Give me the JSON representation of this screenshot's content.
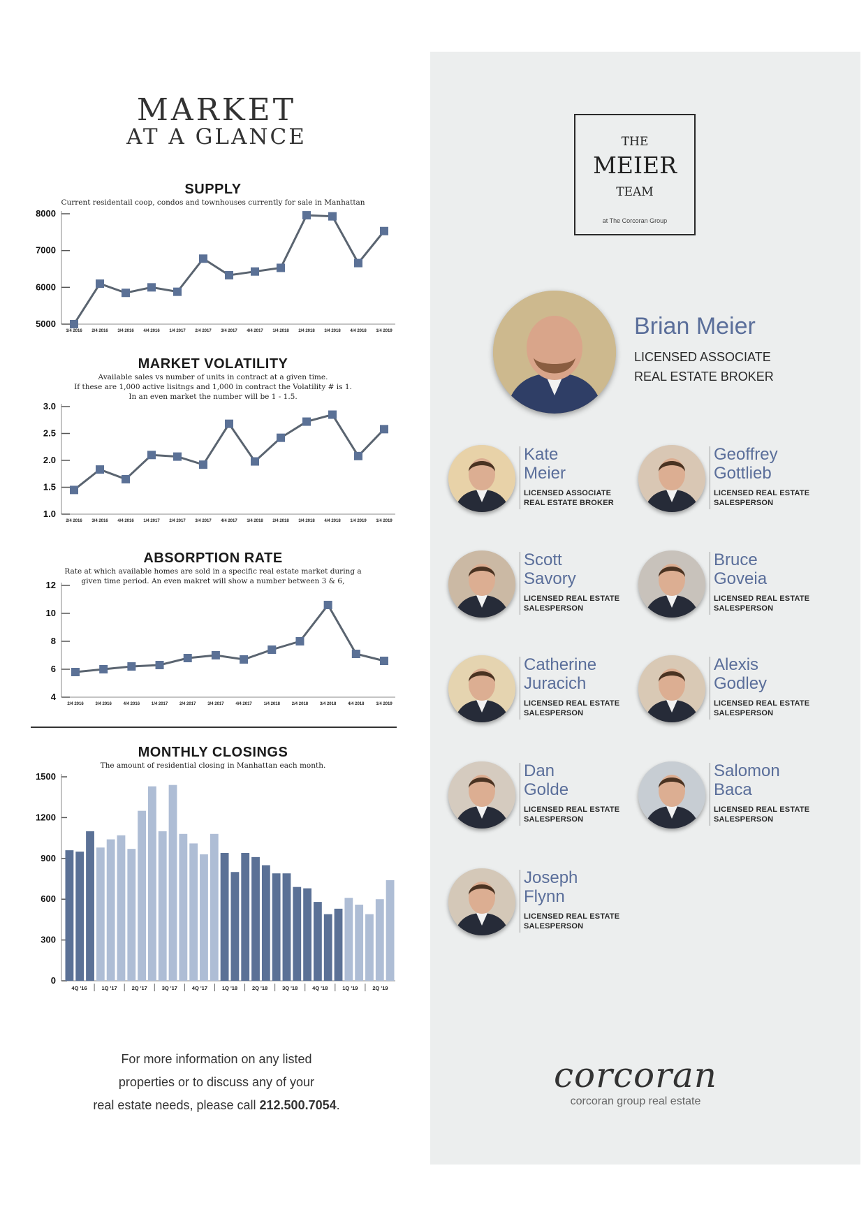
{
  "header": {
    "title_line1": "MARKET",
    "title_line2": "AT A GLANCE"
  },
  "colors": {
    "line": "#5a6470",
    "marker": "#5b7196",
    "bar_dark": "#5b7196",
    "bar_light": "#aebdd5",
    "accent": "#5a6e9a",
    "panel_bg": "#eceeee"
  },
  "chart_data": [
    {
      "id": "supply",
      "type": "line",
      "title": "SUPPLY",
      "subtitle": [
        "Current residentail coop, condos and townhouses currently for sale in Manhattan"
      ],
      "categories": [
        "1/4 2016",
        "2/4 2016",
        "3/4 2016",
        "4/4 2016",
        "1/4 2017",
        "2/4 2017",
        "3/4 2017",
        "4/4 2017",
        "1/4 2018",
        "2/4 2018",
        "3/4 2018",
        "4/4 2018",
        "1/4 2019"
      ],
      "values": [
        5000,
        6100,
        5850,
        6000,
        5880,
        6780,
        6330,
        6430,
        6530,
        7960,
        7930,
        6660,
        7530
      ],
      "yticks": [
        "5000",
        "6000",
        "7000",
        "8000"
      ],
      "ylim": [
        5000,
        8000
      ]
    },
    {
      "id": "volatility",
      "type": "line",
      "title": "MARKET VOLATILITY",
      "subtitle": [
        "Available sales vs number of units in contract at a given time.",
        "If these are 1,000 active lisitngs and 1,000 in contract the Volatility # is 1.",
        "In an even market the number will be 1 - 1.5."
      ],
      "categories": [
        "2/4 2016",
        "3/4 2016",
        "4/4 2016",
        "1/4 2017",
        "2/4 2017",
        "3/4 2017",
        "4/4 2017",
        "1/4 2018",
        "2/4 2018",
        "3/4 2018",
        "4/4 2018",
        "1/4 2019",
        "1/4 2019"
      ],
      "values": [
        1.45,
        1.83,
        1.65,
        2.1,
        2.07,
        1.92,
        2.68,
        1.98,
        2.42,
        2.72,
        2.85,
        2.08,
        2.58
      ],
      "yticks": [
        "1.0",
        "1.5",
        "2.0",
        "2.5",
        "3.0"
      ],
      "ylim": [
        1.0,
        3.0
      ]
    },
    {
      "id": "absorption",
      "type": "line",
      "title": "ABSORPTION RATE",
      "subtitle": [
        "Rate at which available homes are sold in a specific real estate market during a",
        "given time period. An even makret will show a number between 3 & 6,"
      ],
      "categories": [
        "2/4 2016",
        "3/4 2016",
        "4/4 2016",
        "1/4 2017",
        "2/4 2017",
        "3/4 2017",
        "4/4 2017",
        "1/4 2018",
        "2/4 2018",
        "3/4 2018",
        "4/4 2018",
        "1/4 2019"
      ],
      "values": [
        5.8,
        6.0,
        6.2,
        6.3,
        6.8,
        7.0,
        6.7,
        7.4,
        8.0,
        10.6,
        7.1,
        6.6
      ],
      "yticks": [
        "4",
        "6",
        "8",
        "10",
        "12"
      ],
      "ylim": [
        4,
        12
      ]
    },
    {
      "id": "closings",
      "type": "bar",
      "title": "MONTHLY CLOSINGS",
      "subtitle": [
        "The amount of residential closing in Manhattan each month."
      ],
      "values": [
        960,
        950,
        1100,
        980,
        1040,
        1070,
        970,
        1250,
        1430,
        1100,
        1440,
        1080,
        1010,
        930,
        1080,
        940,
        800,
        940,
        910,
        850,
        790,
        790,
        690,
        680,
        580,
        490,
        530,
        610,
        560,
        490,
        600,
        740
      ],
      "bar_colors": [
        "dark",
        "dark",
        "dark",
        "light",
        "light",
        "light",
        "light",
        "light",
        "light",
        "light",
        "light",
        "light",
        "light",
        "light",
        "light",
        "dark",
        "dark",
        "dark",
        "dark",
        "dark",
        "dark",
        "dark",
        "dark",
        "dark",
        "dark",
        "dark",
        "dark",
        "light",
        "light",
        "light",
        "light",
        "light"
      ],
      "quarter_labels": [
        "4Q '16",
        "1Q '17",
        "2Q '17",
        "3Q '17",
        "4Q '17",
        "1Q '18",
        "2Q '18",
        "3Q '18",
        "4Q '18",
        "1Q '19",
        "2Q '19"
      ],
      "yticks": [
        "0",
        "300",
        "600",
        "900",
        "1200",
        "1500"
      ],
      "ylim": [
        0,
        1500
      ]
    }
  ],
  "footer": {
    "line1": "For more information on any listed",
    "line2": "properties or to discuss any of your",
    "line3": "real estate needs, please call ",
    "phone": "212.500.7054",
    "period": "."
  },
  "logo": {
    "the": "THE",
    "meier": "MEIER",
    "team": "TEAM",
    "sub": "at The Corcoran Group"
  },
  "lead": {
    "name": "Brian Meier",
    "title_line1": "LICENSED ASSOCIATE",
    "title_line2": "REAL ESTATE BROKER"
  },
  "agents": [
    {
      "first": "Kate",
      "last": "Meier",
      "role1": "LICENSED ASSOCIATE",
      "role2": "REAL ESTATE BROKER"
    },
    {
      "first": "Geoffrey",
      "last": "Gottlieb",
      "role1": "LICENSED REAL ESTATE",
      "role2": "SALESPERSON"
    },
    {
      "first": "Scott",
      "last": "Savory",
      "role1": "LICENSED REAL ESTATE",
      "role2": "SALESPERSON"
    },
    {
      "first": "Bruce",
      "last": "Goveia",
      "role1": "LICENSED REAL ESTATE",
      "role2": "SALESPERSON"
    },
    {
      "first": "Catherine",
      "last": "Juracich",
      "role1": "LICENSED REAL ESTATE",
      "role2": "SALESPERSON"
    },
    {
      "first": "Alexis",
      "last": "Godley",
      "role1": "LICENSED REAL ESTATE",
      "role2": "SALESPERSON"
    },
    {
      "first": "Dan",
      "last": "Golde",
      "role1": "LICENSED REAL ESTATE",
      "role2": "SALESPERSON"
    },
    {
      "first": "Salomon",
      "last": "Baca",
      "role1": "LICENSED REAL ESTATE",
      "role2": "SALESPERSON"
    },
    {
      "first": "Joseph",
      "last": "Flynn",
      "role1": "LICENSED REAL ESTATE",
      "role2": "SALESPERSON"
    }
  ],
  "brand": {
    "name": "corcoran",
    "tagline": "corcoran group real estate"
  }
}
